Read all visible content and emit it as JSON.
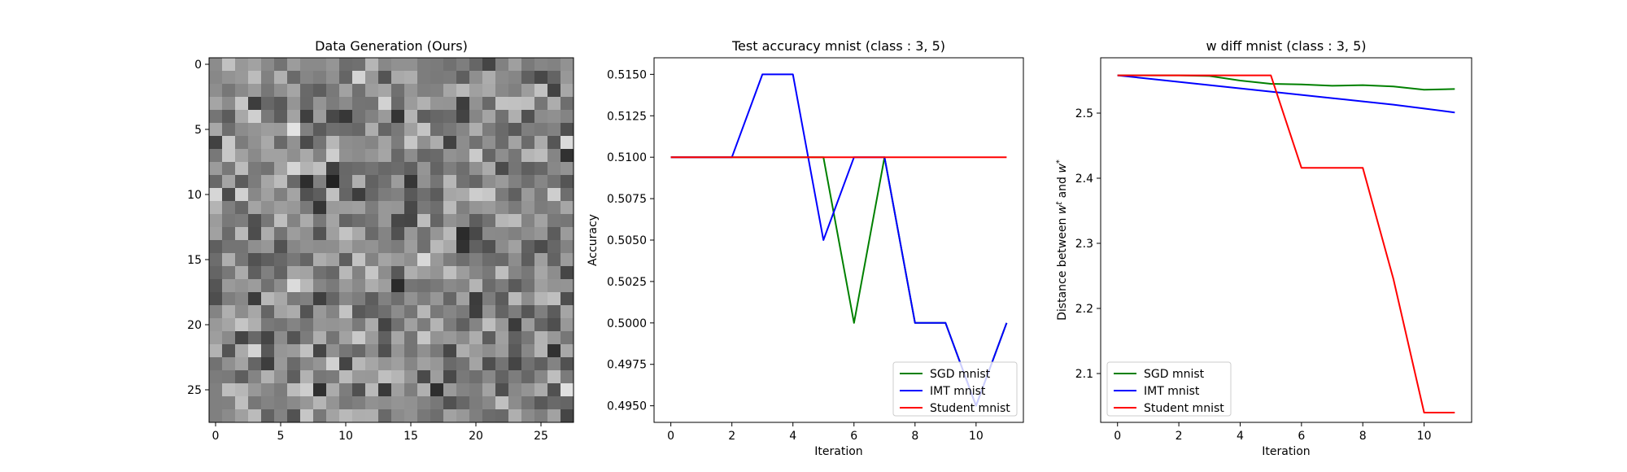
{
  "chart_data": [
    {
      "type": "heatmap",
      "title": "Data Generation (Ours)",
      "colormap": "gray",
      "xticks": [
        0,
        5,
        10,
        15,
        20,
        25
      ],
      "yticks": [
        0,
        5,
        10,
        15,
        20,
        25
      ],
      "grid_size": [
        28,
        28
      ]
    },
    {
      "type": "line",
      "title": "Test accuracy mnist (class : 3, 5)",
      "xlabel": "Iteration",
      "ylabel": "Accuracy",
      "xlim": [
        -0.55,
        11.55
      ],
      "ylim": [
        0.494,
        0.516
      ],
      "xticks": [
        0,
        2,
        4,
        6,
        8,
        10
      ],
      "yticks": [
        0.495,
        0.4975,
        0.5,
        0.5025,
        0.505,
        0.5075,
        0.51,
        0.5125,
        0.515
      ],
      "ytick_labels": [
        "0.4950",
        "0.4975",
        "0.5000",
        "0.5025",
        "0.5050",
        "0.5075",
        "0.5100",
        "0.5125",
        "0.5150"
      ],
      "x": [
        0,
        1,
        2,
        3,
        4,
        5,
        6,
        7,
        8,
        9,
        10,
        11
      ],
      "series": [
        {
          "name": "SGD mnist",
          "color": "#008000",
          "values": [
            0.51,
            0.51,
            0.51,
            0.51,
            0.51,
            0.51,
            0.5,
            0.51,
            0.5,
            0.5,
            0.495,
            0.5
          ]
        },
        {
          "name": "IMT mnist",
          "color": "#0000ff",
          "values": [
            0.51,
            0.51,
            0.51,
            0.515,
            0.515,
            0.505,
            0.51,
            0.51,
            0.5,
            0.5,
            0.495,
            0.5
          ]
        },
        {
          "name": "Student mnist",
          "color": "#ff0000",
          "values": [
            0.51,
            0.51,
            0.51,
            0.51,
            0.51,
            0.51,
            0.51,
            0.51,
            0.51,
            0.51,
            0.51,
            0.51
          ]
        }
      ],
      "legend": "lower right"
    },
    {
      "type": "line",
      "title": "w diff mnist (class : 3, 5)",
      "xlabel": "Iteration",
      "ylabel": "Distance between w^t and w^*",
      "xlim": [
        -0.55,
        11.55
      ],
      "ylim": [
        2.025,
        2.585
      ],
      "xticks": [
        0,
        2,
        4,
        6,
        8,
        10
      ],
      "yticks": [
        2.1,
        2.2,
        2.3,
        2.4,
        2.5
      ],
      "ytick_labels": [
        "2.1",
        "2.2",
        "2.3",
        "2.4",
        "2.5"
      ],
      "x": [
        0,
        1,
        2,
        3,
        4,
        5,
        6,
        7,
        8,
        9,
        10,
        11
      ],
      "series": [
        {
          "name": "SGD mnist",
          "color": "#008000",
          "values": [
            2.558,
            2.558,
            2.558,
            2.557,
            2.55,
            2.545,
            2.544,
            2.542,
            2.543,
            2.541,
            2.536,
            2.537
          ]
        },
        {
          "name": "IMT mnist",
          "color": "#0000ff",
          "values": [
            2.558,
            2.553,
            2.548,
            2.543,
            2.538,
            2.533,
            2.528,
            2.523,
            2.518,
            2.513,
            2.507,
            2.501
          ]
        },
        {
          "name": "Student mnist",
          "color": "#ff0000",
          "values": [
            2.558,
            2.558,
            2.558,
            2.558,
            2.558,
            2.558,
            2.416,
            2.416,
            2.416,
            2.245,
            2.04,
            2.04
          ]
        }
      ],
      "legend": "lower left"
    }
  ]
}
